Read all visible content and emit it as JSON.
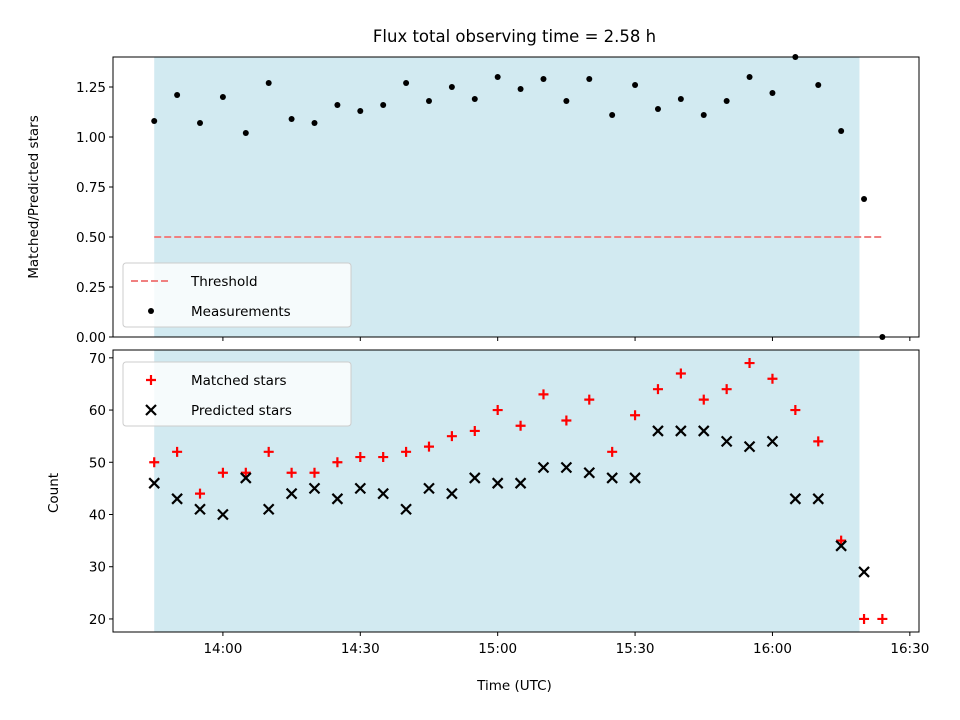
{
  "chart_data": [
    {
      "type": "scatter",
      "title": "Flux total observing time = 2.58 h",
      "xlabel": "",
      "ylabel": "Matched/Predicted stars",
      "ylim": [
        0,
        1.4
      ],
      "yticks": [
        "0.00",
        "0.25",
        "0.50",
        "0.75",
        "1.00",
        "1.25"
      ],
      "shaded_span": {
        "start": "13:45",
        "end": "16:19",
        "color": "#add8e6"
      },
      "legend_position": "lower-left",
      "series": [
        {
          "name": "Threshold",
          "style": "dashed-line",
          "color": "#f08080",
          "x": [
            "13:45",
            "16:24"
          ],
          "y": [
            0.5,
            0.5
          ]
        },
        {
          "name": "Measurements",
          "style": "dot",
          "color": "#000000",
          "x": [
            "13:45",
            "13:50",
            "13:55",
            "14:00",
            "14:05",
            "14:10",
            "14:15",
            "14:20",
            "14:25",
            "14:30",
            "14:35",
            "14:40",
            "14:45",
            "14:50",
            "14:55",
            "15:00",
            "15:05",
            "15:10",
            "15:15",
            "15:20",
            "15:25",
            "15:30",
            "15:35",
            "15:40",
            "15:45",
            "15:50",
            "15:55",
            "16:00",
            "16:05",
            "16:10",
            "16:15",
            "16:20",
            "16:24"
          ],
          "y": [
            1.08,
            1.21,
            1.07,
            1.2,
            1.02,
            1.27,
            1.09,
            1.07,
            1.16,
            1.13,
            1.16,
            1.27,
            1.18,
            1.25,
            1.19,
            1.3,
            1.24,
            1.29,
            1.18,
            1.29,
            1.11,
            1.26,
            1.14,
            1.19,
            1.11,
            1.18,
            1.3,
            1.22,
            1.4,
            1.26,
            1.03,
            0.69,
            0.0
          ]
        }
      ]
    },
    {
      "type": "scatter",
      "title": "",
      "xlabel": "Time (UTC)",
      "ylabel": "Count",
      "ylim": [
        17.5,
        71.5
      ],
      "yticks": [
        "20",
        "30",
        "40",
        "50",
        "60",
        "70"
      ],
      "xticks": [
        "14:00",
        "14:30",
        "15:00",
        "15:30",
        "16:00",
        "16:30"
      ],
      "shaded_span": {
        "start": "13:45",
        "end": "16:19",
        "color": "#add8e6"
      },
      "legend_position": "upper-left",
      "series": [
        {
          "name": "Matched stars",
          "marker": "plus",
          "color": "#ff0000",
          "x": [
            "13:45",
            "13:50",
            "13:55",
            "14:00",
            "14:05",
            "14:10",
            "14:15",
            "14:20",
            "14:25",
            "14:30",
            "14:35",
            "14:40",
            "14:45",
            "14:50",
            "14:55",
            "15:00",
            "15:05",
            "15:10",
            "15:15",
            "15:20",
            "15:25",
            "15:30",
            "15:35",
            "15:40",
            "15:45",
            "15:50",
            "15:55",
            "16:00",
            "16:05",
            "16:10",
            "16:15",
            "16:20",
            "16:24"
          ],
          "y": [
            50,
            52,
            44,
            48,
            48,
            52,
            48,
            48,
            50,
            51,
            51,
            52,
            53,
            55,
            56,
            60,
            57,
            63,
            58,
            62,
            52,
            59,
            64,
            67,
            62,
            64,
            69,
            66,
            60,
            54,
            35,
            20,
            20
          ]
        },
        {
          "name": "Predicted stars",
          "marker": "x",
          "color": "#000000",
          "x": [
            "13:45",
            "13:50",
            "13:55",
            "14:00",
            "14:05",
            "14:10",
            "14:15",
            "14:20",
            "14:25",
            "14:30",
            "14:35",
            "14:40",
            "14:45",
            "14:50",
            "14:55",
            "15:00",
            "15:05",
            "15:10",
            "15:15",
            "15:20",
            "15:25",
            "15:30",
            "15:35",
            "15:40",
            "15:45",
            "15:50",
            "15:55",
            "16:00",
            "16:05",
            "16:10",
            "16:15",
            "16:20"
          ],
          "y": [
            46,
            43,
            41,
            40,
            47,
            41,
            44,
            45,
            43,
            45,
            44,
            41,
            45,
            44,
            47,
            46,
            46,
            49,
            49,
            48,
            47,
            47,
            56,
            56,
            56,
            54,
            53,
            54,
            43,
            43,
            34,
            29
          ]
        }
      ]
    }
  ]
}
